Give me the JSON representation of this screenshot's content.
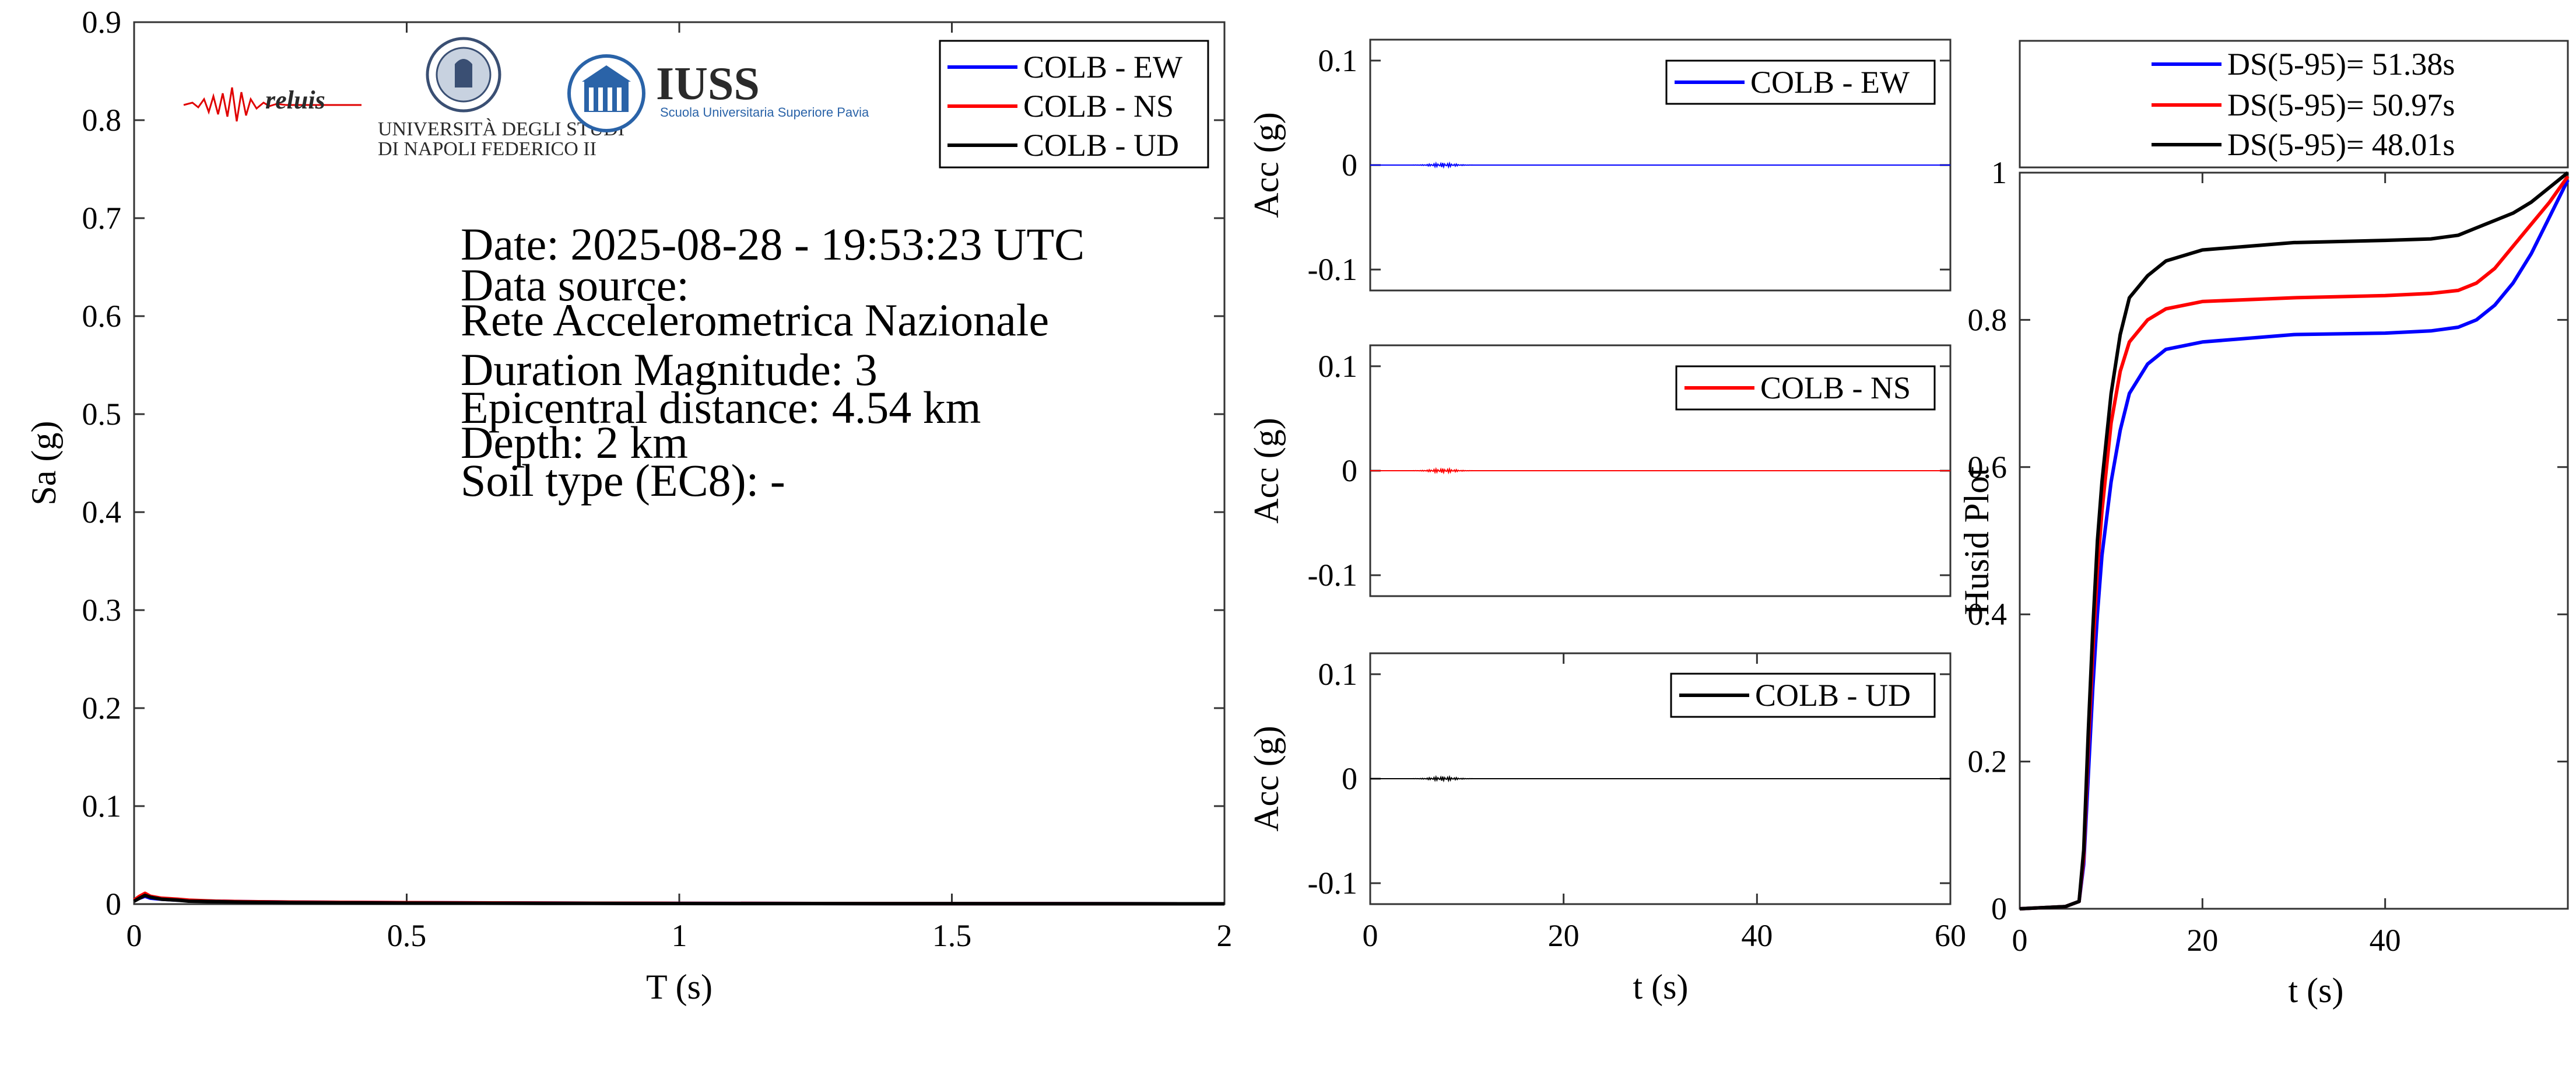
{
  "info": {
    "lines": [
      "Date: 2025-08-28 - 19:53:23 UTC",
      "Data source:",
      "Rete Accelerometrica Nazionale",
      "Duration Magnitude: 3",
      "Epicentral distance: 4.54 km",
      "Depth: 2 km",
      "Soil type (EC8): -"
    ]
  },
  "logos": {
    "reluis": "reluis",
    "unina_line1": "UNIVERSITÀ DEGLI STUDI",
    "unina_line2": "DI NAPOLI FEDERICO II",
    "iuss": "IUSS",
    "iuss_sub": "Scuola Universitaria Superiore Pavia"
  },
  "colors": {
    "ew": "#0000ff",
    "ns": "#ff0000",
    "ud": "#000000"
  },
  "chart_data": [
    {
      "type": "line",
      "id": "spectrum",
      "xlabel": "T (s)",
      "ylabel": "Sa (g)",
      "xlim": [
        0,
        2
      ],
      "ylim": [
        0,
        0.9
      ],
      "xticks": [
        0,
        0.5,
        1,
        1.5,
        2
      ],
      "xtick_labels": [
        "0",
        "0.5",
        "1",
        "1.5",
        "2"
      ],
      "yticks": [
        0,
        0.1,
        0.2,
        0.3,
        0.4,
        0.5,
        0.6,
        0.7,
        0.8,
        0.9
      ],
      "ytick_labels": [
        "0",
        "0.1",
        "0.2",
        "0.3",
        "0.4",
        "0.5",
        "0.6",
        "0.7",
        "0.8",
        "0.9"
      ],
      "legend": "top-right",
      "x": [
        0,
        0.01,
        0.02,
        0.03,
        0.05,
        0.08,
        0.1,
        0.15,
        0.2,
        0.3,
        0.5,
        0.75,
        1,
        1.5,
        2
      ],
      "series": [
        {
          "name": "COLB - EW",
          "color": "#0000ff",
          "values": [
            0.004,
            0.006,
            0.008,
            0.006,
            0.005,
            0.004,
            0.0035,
            0.003,
            0.0025,
            0.002,
            0.0015,
            0.001,
            0.0008,
            0.0005,
            0.0003
          ]
        },
        {
          "name": "COLB - NS",
          "color": "#ff0000",
          "values": [
            0.004,
            0.008,
            0.011,
            0.008,
            0.006,
            0.005,
            0.004,
            0.003,
            0.0025,
            0.002,
            0.0015,
            0.001,
            0.0008,
            0.0005,
            0.0003
          ]
        },
        {
          "name": "COLB - UD",
          "color": "#000000",
          "values": [
            0.003,
            0.006,
            0.009,
            0.007,
            0.005,
            0.004,
            0.003,
            0.0025,
            0.002,
            0.0015,
            0.001,
            0.0008,
            0.0006,
            0.0004,
            0.0003
          ]
        }
      ]
    },
    {
      "type": "line",
      "id": "acc-ew",
      "ylabel": "Acc (g)",
      "xlim": [
        0,
        60
      ],
      "ylim": [
        -0.12,
        0.12
      ],
      "yticks": [
        -0.1,
        0,
        0.1
      ],
      "ytick_labels": [
        "-0.1",
        "0",
        "0.1"
      ],
      "legend": "top-right",
      "series": [
        {
          "name": "COLB - EW",
          "color": "#0000ff",
          "burst_center": 7.5,
          "burst_amp": 0.002
        }
      ]
    },
    {
      "type": "line",
      "id": "acc-ns",
      "ylabel": "Acc (g)",
      "xlim": [
        0,
        60
      ],
      "ylim": [
        -0.12,
        0.12
      ],
      "yticks": [
        -0.1,
        0,
        0.1
      ],
      "ytick_labels": [
        "-0.1",
        "0",
        "0.1"
      ],
      "legend": "top-right",
      "series": [
        {
          "name": "COLB - NS",
          "color": "#ff0000",
          "burst_center": 7.5,
          "burst_amp": 0.002
        }
      ]
    },
    {
      "type": "line",
      "id": "acc-ud",
      "xlabel": "t (s)",
      "ylabel": "Acc (g)",
      "xlim": [
        0,
        60
      ],
      "ylim": [
        -0.12,
        0.12
      ],
      "xticks": [
        0,
        20,
        40,
        60
      ],
      "xtick_labels": [
        "0",
        "20",
        "40",
        "60"
      ],
      "yticks": [
        -0.1,
        0,
        0.1
      ],
      "ytick_labels": [
        "-0.1",
        "0",
        "0.1"
      ],
      "legend": "top-right",
      "series": [
        {
          "name": "COLB - UD",
          "color": "#000000",
          "burst_center": 7.5,
          "burst_amp": 0.002
        }
      ]
    },
    {
      "type": "line",
      "id": "husid",
      "xlabel": "t (s)",
      "ylabel": "Husid Plot",
      "xlim": [
        0,
        60
      ],
      "ylim": [
        0,
        1
      ],
      "xticks": [
        0,
        20,
        40
      ],
      "xtick_labels": [
        "0",
        "20",
        "40"
      ],
      "yticks": [
        0,
        0.2,
        0.4,
        0.6,
        0.8,
        1
      ],
      "ytick_labels": [
        "0",
        "0.2",
        "0.4",
        "0.6",
        "0.8",
        "1"
      ],
      "legend": "top",
      "x": [
        0,
        5,
        6.5,
        7,
        7.5,
        8,
        8.5,
        9,
        10,
        11,
        12,
        14,
        16,
        20,
        30,
        40,
        45,
        48,
        50,
        52,
        54,
        56,
        58,
        60
      ],
      "series": [
        {
          "name": "DS(5-95)= 51.38s",
          "color": "#0000ff",
          "values": [
            0,
            0.003,
            0.01,
            0.06,
            0.18,
            0.3,
            0.4,
            0.48,
            0.58,
            0.65,
            0.7,
            0.74,
            0.76,
            0.77,
            0.78,
            0.782,
            0.785,
            0.79,
            0.8,
            0.82,
            0.85,
            0.89,
            0.94,
            0.99
          ]
        },
        {
          "name": "DS(5-95)= 50.97s",
          "color": "#ff0000",
          "values": [
            0,
            0.003,
            0.01,
            0.07,
            0.22,
            0.35,
            0.46,
            0.54,
            0.66,
            0.73,
            0.77,
            0.8,
            0.815,
            0.825,
            0.83,
            0.833,
            0.836,
            0.84,
            0.85,
            0.87,
            0.9,
            0.93,
            0.96,
            0.995
          ]
        },
        {
          "name": "DS(5-95)= 48.01s",
          "color": "#000000",
          "values": [
            0,
            0.003,
            0.01,
            0.08,
            0.24,
            0.38,
            0.5,
            0.58,
            0.7,
            0.78,
            0.83,
            0.86,
            0.88,
            0.895,
            0.905,
            0.908,
            0.91,
            0.915,
            0.925,
            0.935,
            0.945,
            0.96,
            0.98,
            1.0
          ]
        }
      ]
    }
  ]
}
